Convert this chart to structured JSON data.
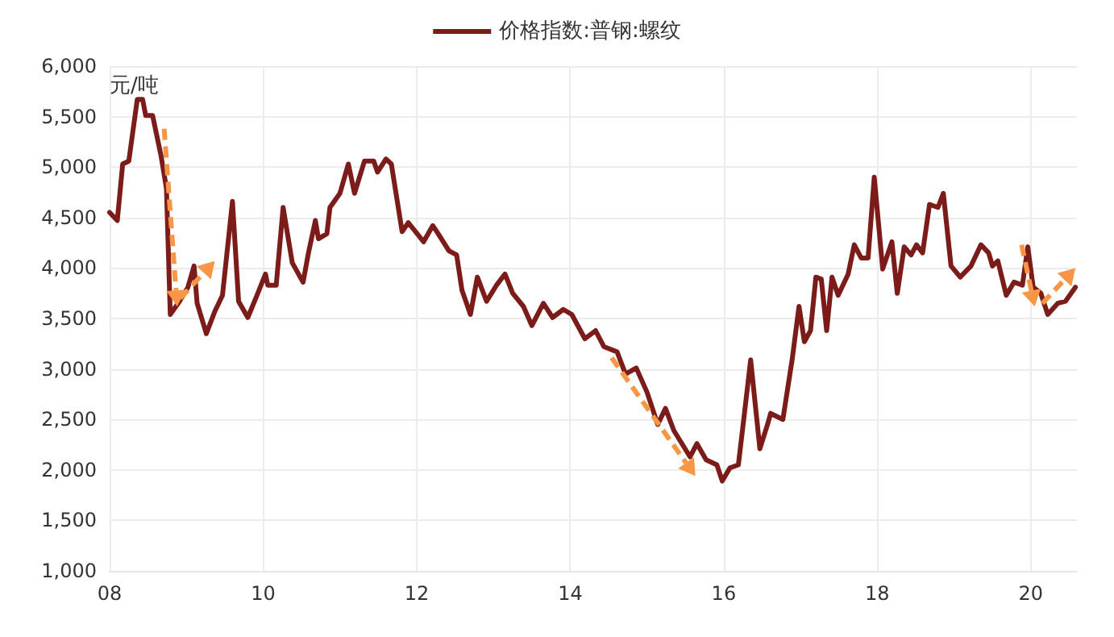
{
  "chart_data": {
    "type": "line",
    "ylabel": "元/吨",
    "legend": "top",
    "grid": true,
    "line_style": "solid",
    "xlim": [
      2008,
      2020.6
    ],
    "ylim": [
      1000,
      6000
    ],
    "xticks": [
      {
        "value": 2008,
        "label": "08"
      },
      {
        "value": 2010,
        "label": "10"
      },
      {
        "value": 2012,
        "label": "12"
      },
      {
        "value": 2014,
        "label": "14"
      },
      {
        "value": 2016,
        "label": "16"
      },
      {
        "value": 2018,
        "label": "18"
      },
      {
        "value": 2020,
        "label": "20"
      }
    ],
    "yticks": [
      {
        "value": 1000,
        "label": "1,000"
      },
      {
        "value": 1500,
        "label": "1,500"
      },
      {
        "value": 2000,
        "label": "2,000"
      },
      {
        "value": 2500,
        "label": "2,500"
      },
      {
        "value": 3000,
        "label": "3,000"
      },
      {
        "value": 3500,
        "label": "3,500"
      },
      {
        "value": 4000,
        "label": "4,000"
      },
      {
        "value": 4500,
        "label": "4,500"
      },
      {
        "value": 5000,
        "label": "5,000"
      },
      {
        "value": 5500,
        "label": "5,500"
      },
      {
        "value": 6000,
        "label": "6,000"
      }
    ],
    "series": [
      {
        "name": "价格指数:普钢:螺纹",
        "color": "#7b1c1a",
        "x": [
          2008.0,
          2008.1,
          2008.17,
          2008.25,
          2008.36,
          2008.43,
          2008.47,
          2008.56,
          2008.67,
          2008.74,
          2008.79,
          2008.91,
          2009.02,
          2009.1,
          2009.14,
          2009.26,
          2009.37,
          2009.47,
          2009.6,
          2009.68,
          2009.8,
          2009.92,
          2010.03,
          2010.06,
          2010.17,
          2010.26,
          2010.38,
          2010.52,
          2010.59,
          2010.68,
          2010.72,
          2010.83,
          2010.87,
          2011.0,
          2011.11,
          2011.19,
          2011.32,
          2011.44,
          2011.49,
          2011.6,
          2011.67,
          2011.81,
          2011.89,
          2012.09,
          2012.21,
          2012.28,
          2012.42,
          2012.52,
          2012.59,
          2012.7,
          2012.79,
          2012.91,
          2013.04,
          2013.15,
          2013.25,
          2013.39,
          2013.5,
          2013.65,
          2013.77,
          2013.91,
          2014.02,
          2014.19,
          2014.33,
          2014.44,
          2014.61,
          2014.72,
          2014.86,
          2015.0,
          2015.14,
          2015.24,
          2015.35,
          2015.56,
          2015.65,
          2015.77,
          2015.91,
          2015.98,
          2016.08,
          2016.19,
          2016.26,
          2016.35,
          2016.47,
          2016.57,
          2016.61,
          2016.77,
          2016.89,
          2016.98,
          2017.05,
          2017.13,
          2017.2,
          2017.27,
          2017.34,
          2017.41,
          2017.49,
          2017.62,
          2017.7,
          2017.79,
          2017.88,
          2017.96,
          2018.07,
          2018.19,
          2018.26,
          2018.35,
          2018.44,
          2018.51,
          2018.59,
          2018.68,
          2018.79,
          2018.86,
          2018.96,
          2019.08,
          2019.22,
          2019.35,
          2019.45,
          2019.5,
          2019.57,
          2019.68,
          2019.78,
          2019.89,
          2019.96,
          2020.03,
          2020.13,
          2020.22,
          2020.35,
          2020.45,
          2020.58
        ],
        "values": [
          4550,
          4470,
          5030,
          5060,
          5670,
          5670,
          5510,
          5510,
          5110,
          4790,
          3540,
          3670,
          3810,
          4020,
          3650,
          3350,
          3570,
          3730,
          4660,
          3670,
          3510,
          3730,
          3940,
          3830,
          3830,
          4600,
          4050,
          3860,
          4150,
          4470,
          4290,
          4340,
          4600,
          4740,
          5030,
          4740,
          5060,
          5060,
          4950,
          5080,
          5030,
          4360,
          4450,
          4260,
          4420,
          4340,
          4170,
          4130,
          3780,
          3540,
          3910,
          3670,
          3830,
          3940,
          3750,
          3620,
          3430,
          3650,
          3510,
          3590,
          3540,
          3300,
          3380,
          3220,
          3170,
          2950,
          3010,
          2770,
          2450,
          2610,
          2390,
          2130,
          2260,
          2100,
          2050,
          1890,
          2020,
          2050,
          2500,
          3090,
          2210,
          2450,
          2560,
          2500,
          3090,
          3620,
          3270,
          3380,
          3910,
          3890,
          3380,
          3910,
          3730,
          3940,
          4230,
          4100,
          4100,
          4900,
          3990,
          4260,
          3750,
          4210,
          4130,
          4230,
          4150,
          4630,
          4600,
          4740,
          4020,
          3910,
          4020,
          4230,
          4150,
          4020,
          4070,
          3730,
          3860,
          3830,
          4210,
          3810,
          3750,
          3540,
          3650,
          3670,
          3810
        ]
      }
    ]
  }
}
